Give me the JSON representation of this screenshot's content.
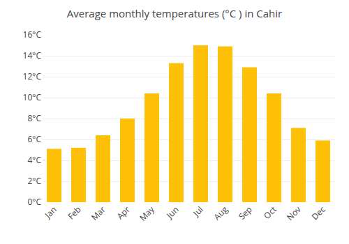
{
  "chart_data": {
    "type": "bar",
    "title": "Average monthly temperatures (°C ) in Cahir",
    "categories": [
      "Jan",
      "Feb",
      "Mar",
      "Apr",
      "May",
      "Jun",
      "Jul",
      "Aug",
      "Sep",
      "Oct",
      "Nov",
      "Dec"
    ],
    "values": [
      5.1,
      5.2,
      6.4,
      8.0,
      10.4,
      13.3,
      15.0,
      14.9,
      12.9,
      10.4,
      7.1,
      5.9
    ],
    "color": "#FFC107",
    "ylim": [
      0,
      16
    ],
    "yticks": [
      {
        "value": 0,
        "label": "0°C"
      },
      {
        "value": 2,
        "label": "2°C"
      },
      {
        "value": 4,
        "label": "4°C"
      },
      {
        "value": 6,
        "label": "6°C"
      },
      {
        "value": 8,
        "label": "8°C"
      },
      {
        "value": 10,
        "label": "10°C"
      },
      {
        "value": 12,
        "label": "12°C"
      },
      {
        "value": 14,
        "label": "14°C"
      },
      {
        "value": 16,
        "label": "16°C"
      }
    ],
    "grid": true
  }
}
